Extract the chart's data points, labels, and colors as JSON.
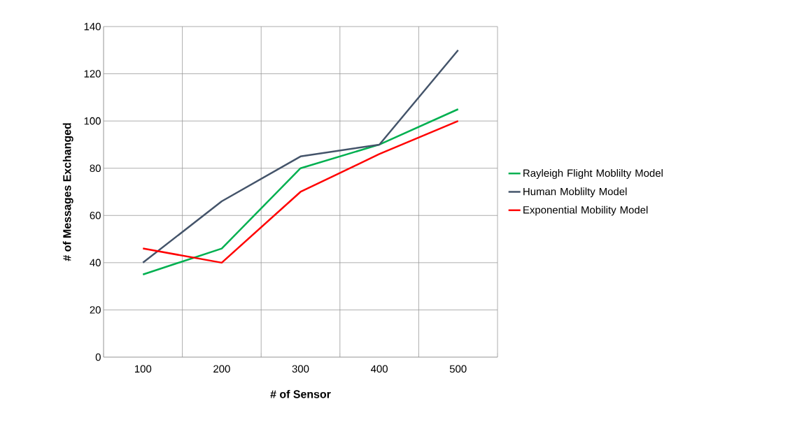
{
  "chart_data": {
    "type": "line",
    "xlabel": "# of Sensor",
    "ylabel": "# of Messages Exchanged",
    "categories": [
      "100",
      "200",
      "300",
      "400",
      "500"
    ],
    "series": [
      {
        "name": "Rayleigh Flight Moblilty Model",
        "color": "#00b050",
        "values": [
          35,
          46,
          80,
          90,
          105
        ]
      },
      {
        "name": "Human Moblilty Model",
        "color": "#44546a",
        "values": [
          40,
          66,
          85,
          90,
          130
        ]
      },
      {
        "name": "Exponential Mobility Model",
        "color": "#ff0000",
        "values": [
          46,
          40,
          70,
          86,
          100
        ]
      }
    ],
    "ylim": [
      0,
      140
    ],
    "yticks": [
      0,
      20,
      40,
      60,
      80,
      100,
      120,
      140
    ],
    "grid": true,
    "legend": "right",
    "marker": "none"
  }
}
